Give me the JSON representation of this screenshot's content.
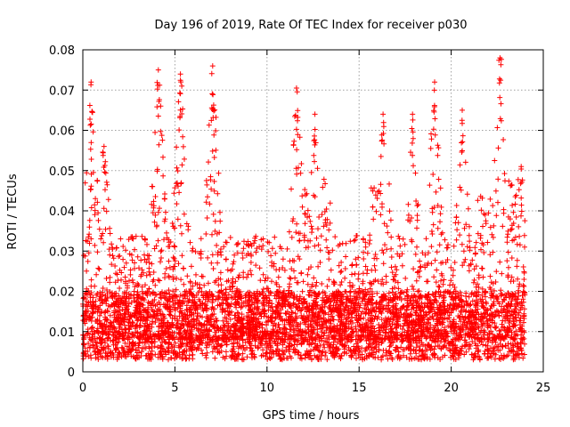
{
  "chart_data": {
    "type": "scatter",
    "title": "Day 196 of 2019, Rate Of TEC Index for receiver p030",
    "xlabel": "GPS time / hours",
    "ylabel": "ROTI / TECUs",
    "xlim": [
      0,
      25
    ],
    "ylim": [
      0,
      0.08
    ],
    "xticks": [
      0,
      5,
      10,
      15,
      20,
      25
    ],
    "yticks": [
      0,
      0.01,
      0.02,
      0.03,
      0.04,
      0.05,
      0.06,
      0.07,
      0.08
    ],
    "xtick_labels": [
      "0",
      "5",
      "10",
      "15",
      "20",
      "25"
    ],
    "ytick_labels": [
      "0",
      "0.01",
      "0.02",
      "0.03",
      "0.04",
      "0.05",
      "0.06",
      "0.07",
      "0.08"
    ],
    "grid": true,
    "marker": "+",
    "series": [
      {
        "name": "ROTI",
        "color": "#ff0000",
        "time_range_hours": [
          0,
          24
        ],
        "baseline_range": [
          0.003,
          0.02
        ],
        "notable_peaks": [
          {
            "x": 0.45,
            "y": 0.072
          },
          {
            "x": 1.15,
            "y": 0.056
          },
          {
            "x": 4.1,
            "y": 0.075
          },
          {
            "x": 5.3,
            "y": 0.074
          },
          {
            "x": 7.05,
            "y": 0.076
          },
          {
            "x": 11.6,
            "y": 0.0705
          },
          {
            "x": 12.6,
            "y": 0.064
          },
          {
            "x": 16.3,
            "y": 0.064
          },
          {
            "x": 17.9,
            "y": 0.064
          },
          {
            "x": 19.1,
            "y": 0.072
          },
          {
            "x": 20.6,
            "y": 0.065
          },
          {
            "x": 22.65,
            "y": 0.078
          },
          {
            "x": 23.8,
            "y": 0.051
          }
        ]
      }
    ]
  }
}
